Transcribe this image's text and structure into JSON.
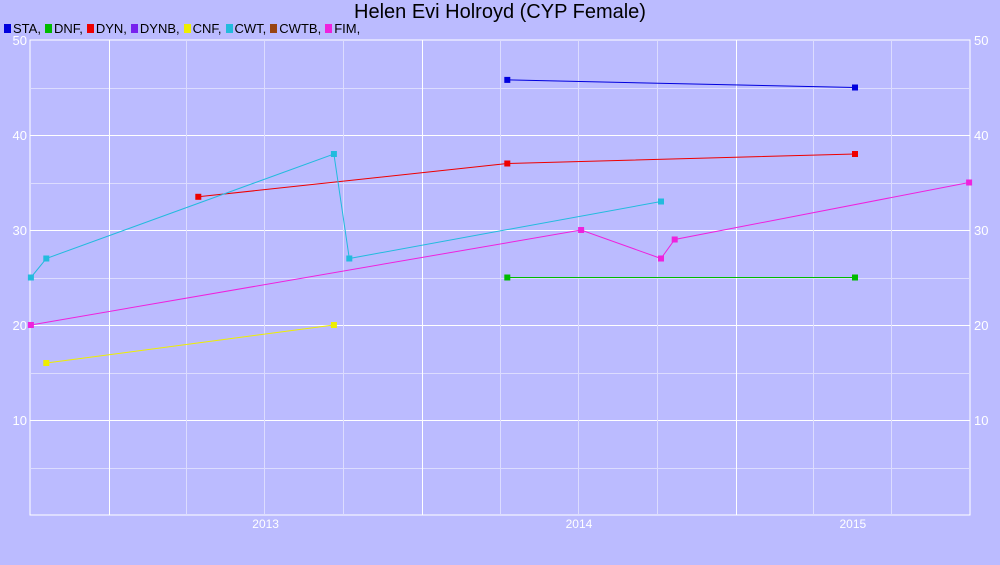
{
  "chart_data": {
    "type": "line",
    "title": "Helen Evi Holroyd (CYP Female)",
    "xlabel": "",
    "ylabel": "",
    "x_ticks": [
      "2013",
      "2014",
      "2015"
    ],
    "xlim": [
      "2012-10-01",
      "2015-10-01"
    ],
    "ylim": [
      0,
      50
    ],
    "y_ticks": [
      10,
      20,
      30,
      40,
      50
    ],
    "y_axis_both_sides": true,
    "grid": true,
    "legend_position": "top-left",
    "series": [
      {
        "name": "STA,",
        "color": "#0000dd",
        "points": [
          [
            "2014-04-10",
            45.8
          ],
          [
            "2015-05-20",
            45.0
          ]
        ]
      },
      {
        "name": "DNF,",
        "color": "#00bb00",
        "points": [
          [
            "2014-04-10",
            25.0
          ],
          [
            "2015-05-20",
            25.0
          ]
        ]
      },
      {
        "name": "DYN,",
        "color": "#ee0000",
        "points": [
          [
            "2013-04-15",
            33.5
          ],
          [
            "2014-04-10",
            37.0
          ],
          [
            "2015-05-20",
            38.0
          ]
        ]
      },
      {
        "name": "DYNB,",
        "color": "#7722ee",
        "points": []
      },
      {
        "name": "CNF,",
        "color": "#eeee00",
        "points": [
          [
            "2012-10-20",
            16.0
          ],
          [
            "2013-09-20",
            20.0
          ]
        ]
      },
      {
        "name": "CWT,",
        "color": "#22bbdd",
        "points": [
          [
            "2012-10-02",
            25.0
          ],
          [
            "2012-10-20",
            27.0
          ],
          [
            "2013-09-20",
            38.0
          ],
          [
            "2013-10-08",
            27.0
          ],
          [
            "2014-10-06",
            33.0
          ]
        ]
      },
      {
        "name": "CWTB,",
        "color": "#994411",
        "points": []
      },
      {
        "name": "FIM,",
        "color": "#ee22dd",
        "points": [
          [
            "2012-10-02",
            20.0
          ],
          [
            "2014-07-05",
            30.0
          ],
          [
            "2014-10-06",
            27.0
          ],
          [
            "2014-10-22",
            29.0
          ],
          [
            "2015-09-30",
            35.0
          ]
        ]
      }
    ]
  }
}
